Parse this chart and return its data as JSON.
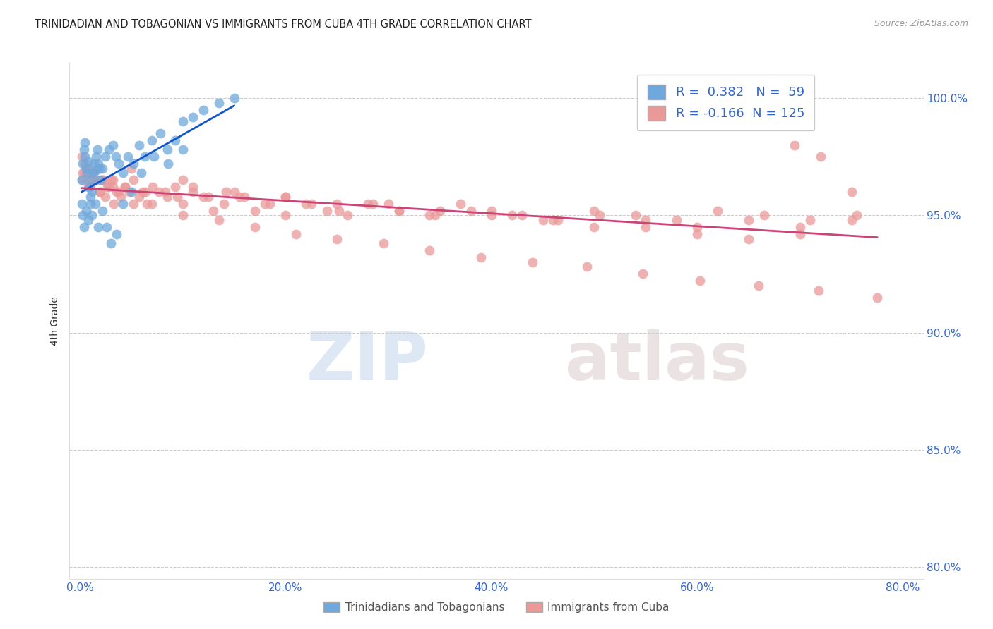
{
  "title": "TRINIDADIAN AND TOBAGONIAN VS IMMIGRANTS FROM CUBA 4TH GRADE CORRELATION CHART",
  "source": "Source: ZipAtlas.com",
  "ylabel": "4th Grade",
  "yticks": [
    80.0,
    85.0,
    90.0,
    95.0,
    100.0
  ],
  "xticks": [
    0.0,
    0.2,
    0.4,
    0.6,
    0.8
  ],
  "xlim": [
    -0.01,
    0.82
  ],
  "ylim": [
    79.5,
    101.5
  ],
  "blue_R": 0.382,
  "blue_N": 59,
  "pink_R": -0.166,
  "pink_N": 125,
  "blue_color": "#6fa8dc",
  "pink_color": "#ea9999",
  "blue_line_color": "#1155cc",
  "pink_line_color": "#cc4477",
  "legend_label_blue": "Trinidadians and Tobagonians",
  "legend_label_pink": "Immigrants from Cuba",
  "watermark_zip": "ZIP",
  "watermark_atlas": "atlas",
  "blue_scatter_x": [
    0.002,
    0.003,
    0.004,
    0.005,
    0.005,
    0.006,
    0.007,
    0.008,
    0.009,
    0.01,
    0.011,
    0.012,
    0.013,
    0.014,
    0.015,
    0.016,
    0.017,
    0.018,
    0.019,
    0.02,
    0.022,
    0.025,
    0.028,
    0.032,
    0.035,
    0.038,
    0.042,
    0.047,
    0.052,
    0.058,
    0.063,
    0.07,
    0.078,
    0.085,
    0.093,
    0.1,
    0.11,
    0.12,
    0.135,
    0.15,
    0.002,
    0.003,
    0.004,
    0.006,
    0.008,
    0.01,
    0.012,
    0.015,
    0.018,
    0.022,
    0.026,
    0.03,
    0.036,
    0.042,
    0.05,
    0.06,
    0.072,
    0.086,
    0.1
  ],
  "blue_scatter_y": [
    96.5,
    97.2,
    97.8,
    98.1,
    97.5,
    97.0,
    96.8,
    97.3,
    96.2,
    95.8,
    96.5,
    96.0,
    96.8,
    97.2,
    96.9,
    97.5,
    97.8,
    97.2,
    97.0,
    96.5,
    97.0,
    97.5,
    97.8,
    98.0,
    97.5,
    97.2,
    96.8,
    97.5,
    97.2,
    98.0,
    97.5,
    98.2,
    98.5,
    97.8,
    98.2,
    99.0,
    99.2,
    99.5,
    99.8,
    100.0,
    95.5,
    95.0,
    94.5,
    95.2,
    94.8,
    95.5,
    95.0,
    95.5,
    94.5,
    95.2,
    94.5,
    93.8,
    94.2,
    95.5,
    96.0,
    96.8,
    97.5,
    97.2,
    97.8
  ],
  "pink_scatter_x": [
    0.002,
    0.003,
    0.005,
    0.007,
    0.008,
    0.01,
    0.012,
    0.015,
    0.018,
    0.02,
    0.022,
    0.025,
    0.028,
    0.03,
    0.033,
    0.036,
    0.04,
    0.044,
    0.048,
    0.052,
    0.058,
    0.064,
    0.07,
    0.077,
    0.085,
    0.093,
    0.1,
    0.11,
    0.12,
    0.13,
    0.14,
    0.155,
    0.17,
    0.185,
    0.2,
    0.22,
    0.24,
    0.26,
    0.285,
    0.31,
    0.34,
    0.37,
    0.4,
    0.43,
    0.465,
    0.5,
    0.54,
    0.58,
    0.62,
    0.665,
    0.71,
    0.755,
    0.002,
    0.004,
    0.006,
    0.008,
    0.01,
    0.013,
    0.016,
    0.019,
    0.023,
    0.027,
    0.032,
    0.038,
    0.044,
    0.052,
    0.061,
    0.071,
    0.083,
    0.095,
    0.11,
    0.125,
    0.142,
    0.16,
    0.18,
    0.2,
    0.225,
    0.252,
    0.28,
    0.31,
    0.345,
    0.38,
    0.42,
    0.46,
    0.505,
    0.55,
    0.6,
    0.65,
    0.7,
    0.75,
    0.05,
    0.1,
    0.15,
    0.2,
    0.25,
    0.3,
    0.35,
    0.4,
    0.45,
    0.5,
    0.55,
    0.6,
    0.65,
    0.7,
    0.032,
    0.065,
    0.1,
    0.135,
    0.17,
    0.21,
    0.25,
    0.295,
    0.34,
    0.39,
    0.44,
    0.493,
    0.547,
    0.603,
    0.66,
    0.718,
    0.775,
    0.75,
    0.72,
    0.695,
    0.68
  ],
  "pink_scatter_y": [
    97.5,
    96.8,
    97.2,
    96.5,
    97.0,
    96.2,
    96.8,
    96.5,
    97.0,
    96.0,
    96.5,
    95.8,
    96.2,
    96.5,
    95.5,
    96.0,
    95.8,
    96.2,
    96.0,
    95.5,
    95.8,
    96.0,
    95.5,
    96.0,
    95.8,
    96.2,
    95.5,
    96.0,
    95.8,
    95.2,
    95.5,
    95.8,
    95.2,
    95.5,
    95.0,
    95.5,
    95.2,
    95.0,
    95.5,
    95.2,
    95.0,
    95.5,
    95.2,
    95.0,
    94.8,
    95.2,
    95.0,
    94.8,
    95.2,
    95.0,
    94.8,
    95.0,
    96.5,
    96.8,
    97.0,
    96.2,
    96.5,
    96.8,
    96.5,
    96.0,
    96.5,
    96.2,
    96.5,
    96.0,
    96.2,
    96.5,
    96.0,
    96.2,
    96.0,
    95.8,
    96.2,
    95.8,
    96.0,
    95.8,
    95.5,
    95.8,
    95.5,
    95.2,
    95.5,
    95.2,
    95.0,
    95.2,
    95.0,
    94.8,
    95.0,
    94.8,
    94.5,
    94.8,
    94.5,
    94.8,
    97.0,
    96.5,
    96.0,
    95.8,
    95.5,
    95.5,
    95.2,
    95.0,
    94.8,
    94.5,
    94.5,
    94.2,
    94.0,
    94.2,
    96.2,
    95.5,
    95.0,
    94.8,
    94.5,
    94.2,
    94.0,
    93.8,
    93.5,
    93.2,
    93.0,
    92.8,
    92.5,
    92.2,
    92.0,
    91.8,
    91.5,
    96.0,
    97.5,
    98.0,
    100.2
  ]
}
